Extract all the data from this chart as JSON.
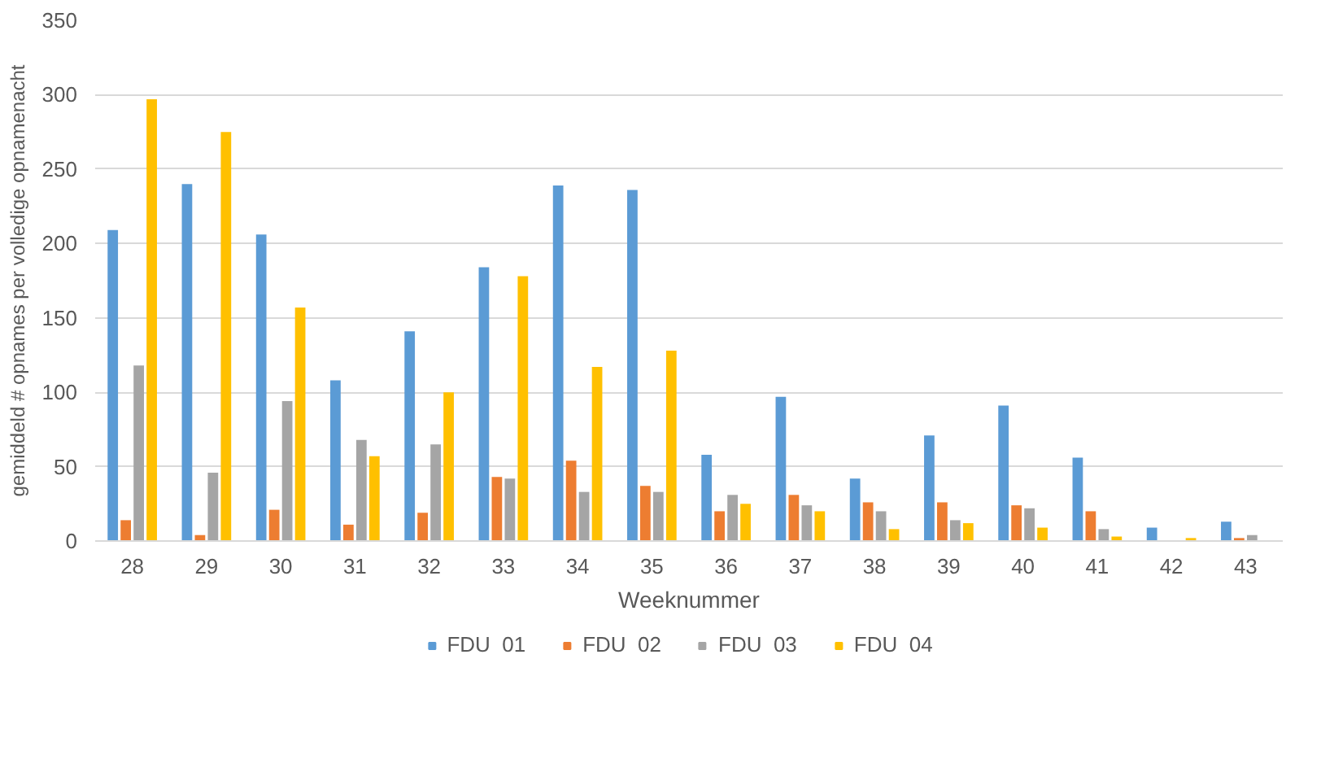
{
  "chart_data": {
    "type": "bar",
    "xlabel": "Weeknummer",
    "ylabel": "gemiddeld # opnames per volledige opnamenacht",
    "categories": [
      "28",
      "29",
      "30",
      "31",
      "32",
      "33",
      "34",
      "35",
      "36",
      "37",
      "38",
      "39",
      "40",
      "41",
      "42",
      "43"
    ],
    "series": [
      {
        "name": "FDU  01",
        "color": "#5b9bd5",
        "values": [
          209,
          240,
          206,
          108,
          141,
          184,
          239,
          236,
          58,
          97,
          42,
          71,
          91,
          56,
          9,
          13
        ]
      },
      {
        "name": "FDU  02",
        "color": "#ed7d31",
        "values": [
          14,
          4,
          21,
          11,
          19,
          43,
          54,
          37,
          20,
          31,
          26,
          26,
          24,
          20,
          0,
          2
        ]
      },
      {
        "name": "FDU  03",
        "color": "#a5a5a5",
        "values": [
          118,
          46,
          94,
          68,
          65,
          42,
          33,
          33,
          31,
          24,
          20,
          14,
          22,
          8,
          0,
          4
        ]
      },
      {
        "name": "FDU  04",
        "color": "#ffc000",
        "values": [
          297,
          275,
          157,
          57,
          100,
          178,
          117,
          128,
          25,
          20,
          8,
          12,
          9,
          3,
          2,
          0
        ]
      }
    ],
    "ylim": [
      0,
      350
    ],
    "yticks": [
      0,
      50,
      100,
      150,
      200,
      250,
      300,
      350
    ],
    "grid": "y",
    "legend": "bottom"
  }
}
